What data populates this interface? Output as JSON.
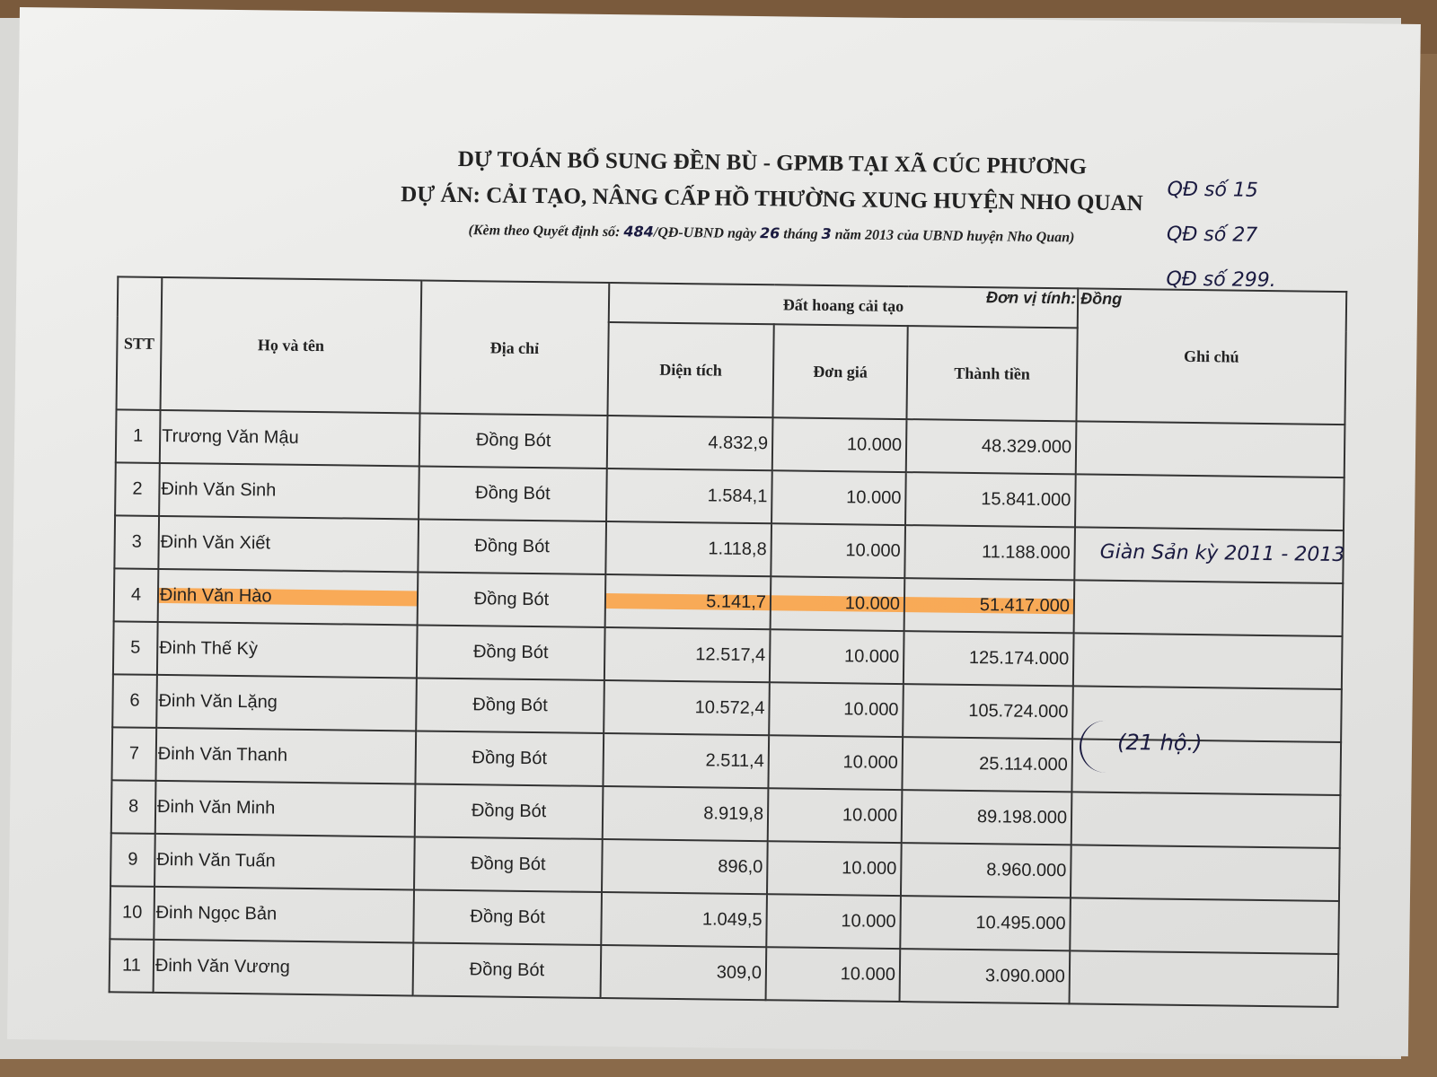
{
  "document": {
    "title_line1": "DỰ TOÁN BỔ SUNG ĐỀN BÙ - GPMB TẠI XÃ CÚC PHƯƠNG",
    "title_line2": "DỰ ÁN: CẢI TẠO, NÂNG CẤP HỒ THƯỜNG XUNG HUYỆN NHO QUAN",
    "subtitle_prefix": "(Kèm theo Quyết định số: ",
    "decision_number": "484",
    "subtitle_mid1": "/QĐ-UBND ngày ",
    "day": "26",
    "subtitle_mid2": " tháng ",
    "month": "3",
    "subtitle_suffix": " năm 2013 của UBND huyện Nho Quan)",
    "unit_label": "Đơn vị tính: Đồng",
    "handwritten_refs": [
      "QĐ số 15",
      "QĐ số 27",
      "QĐ số 299."
    ],
    "handwritten_note": "Giàn Sản kỳ 2011 - 2013",
    "handwritten_count": "(21 hộ.)",
    "highlight_color": "#ff9628"
  },
  "table": {
    "headers": {
      "stt": "STT",
      "name": "Họ và tên",
      "address": "Địa chỉ",
      "group": "Đất hoang cải tạo",
      "area": "Diện tích",
      "unit_price": "Đơn giá",
      "amount": "Thành tiền",
      "note": "Ghi chú"
    },
    "rows": [
      {
        "stt": "1",
        "name": "Trương Văn Mậu",
        "address": "Đồng Bót",
        "area": "4.832,9",
        "unit_price": "10.000",
        "amount": "48.329.000"
      },
      {
        "stt": "2",
        "name": "Đinh Văn Sinh",
        "address": "Đồng Bót",
        "area": "1.584,1",
        "unit_price": "10.000",
        "amount": "15.841.000"
      },
      {
        "stt": "3",
        "name": "Đinh Văn Xiết",
        "address": "Đồng Bót",
        "area": "1.118,8",
        "unit_price": "10.000",
        "amount": "11.188.000"
      },
      {
        "stt": "4",
        "name": "Đinh Văn Hào",
        "address": "Đồng Bót",
        "area": "5.141,7",
        "unit_price": "10.000",
        "amount": "51.417.000"
      },
      {
        "stt": "5",
        "name": "Đinh Thế Kỳ",
        "address": "Đồng Bót",
        "area": "12.517,4",
        "unit_price": "10.000",
        "amount": "125.174.000"
      },
      {
        "stt": "6",
        "name": "Đinh Văn Lặng",
        "address": "Đồng Bót",
        "area": "10.572,4",
        "unit_price": "10.000",
        "amount": "105.724.000"
      },
      {
        "stt": "7",
        "name": "Đinh Văn Thanh",
        "address": "Đồng Bót",
        "area": "2.511,4",
        "unit_price": "10.000",
        "amount": "25.114.000"
      },
      {
        "stt": "8",
        "name": "Đinh Văn Minh",
        "address": "Đồng Bót",
        "area": "8.919,8",
        "unit_price": "10.000",
        "amount": "89.198.000"
      },
      {
        "stt": "9",
        "name": "Đinh Văn Tuấn",
        "address": "Đồng Bót",
        "area": "896,0",
        "unit_price": "10.000",
        "amount": "8.960.000"
      },
      {
        "stt": "10",
        "name": "Đinh Ngọc Bản",
        "address": "Đồng Bót",
        "area": "1.049,5",
        "unit_price": "10.000",
        "amount": "10.495.000"
      },
      {
        "stt": "11",
        "name": "Đinh Văn Vương",
        "address": "Đồng Bót",
        "area": "309,0",
        "unit_price": "10.000",
        "amount": "3.090.000"
      }
    ]
  }
}
